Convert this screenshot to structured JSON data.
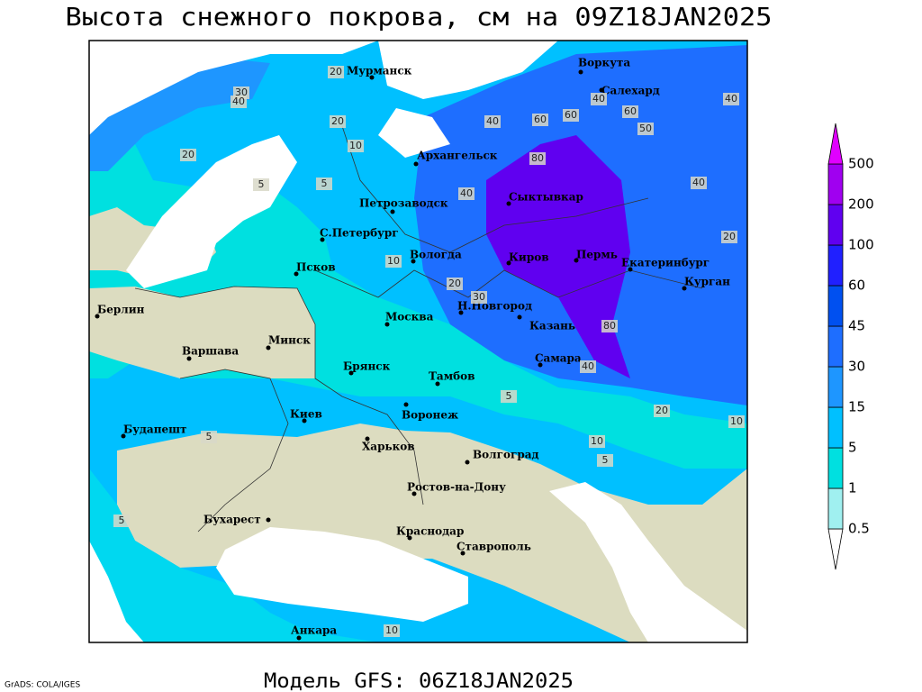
{
  "header": {
    "title": "Высота снежного покрова, см на 09Z18JAN2025"
  },
  "map": {
    "cities": [
      "Мурманск",
      "Воркута",
      "Салехард",
      "Архангельск",
      "Петрозаводск",
      "Сыктывкар",
      "С.Петербург",
      "Вологда",
      "Киров",
      "Пермь",
      "Екатеринбург",
      "Курган",
      "Псков",
      "Н.Новгород",
      "Москва",
      "Казань",
      "Минск",
      "Берлин",
      "Варшава",
      "Брянск",
      "Тамбов",
      "Самара",
      "Киев",
      "Воронеж",
      "Будапешт",
      "Харьков",
      "Волгоград",
      "Ростов-на-Дону",
      "Бухарест",
      "Краснодар",
      "Ставрополь",
      "Анкара"
    ],
    "contour_labels": [
      20,
      30,
      40,
      20,
      10,
      5,
      20,
      40,
      60,
      80,
      60,
      40,
      60,
      40,
      50,
      40,
      30,
      20,
      10,
      5,
      5,
      10,
      20,
      40,
      80,
      40,
      20,
      10,
      5,
      5,
      5,
      10
    ],
    "colorbar": {
      "levels": [
        0.5,
        1,
        5,
        15,
        30,
        45,
        60,
        100,
        200,
        500
      ],
      "colors": [
        "#ffffff",
        "#a0f0f0",
        "#00e0e0",
        "#00c0ff",
        "#1e96ff",
        "#1e6eff",
        "#0050f0",
        "#2020ff",
        "#6000f0",
        "#a000f0",
        "#e000ff"
      ]
    }
  },
  "footer": {
    "model": "Модель GFS: 06Z18JAN2025",
    "credit": "GrADS: COLA/IGES"
  }
}
